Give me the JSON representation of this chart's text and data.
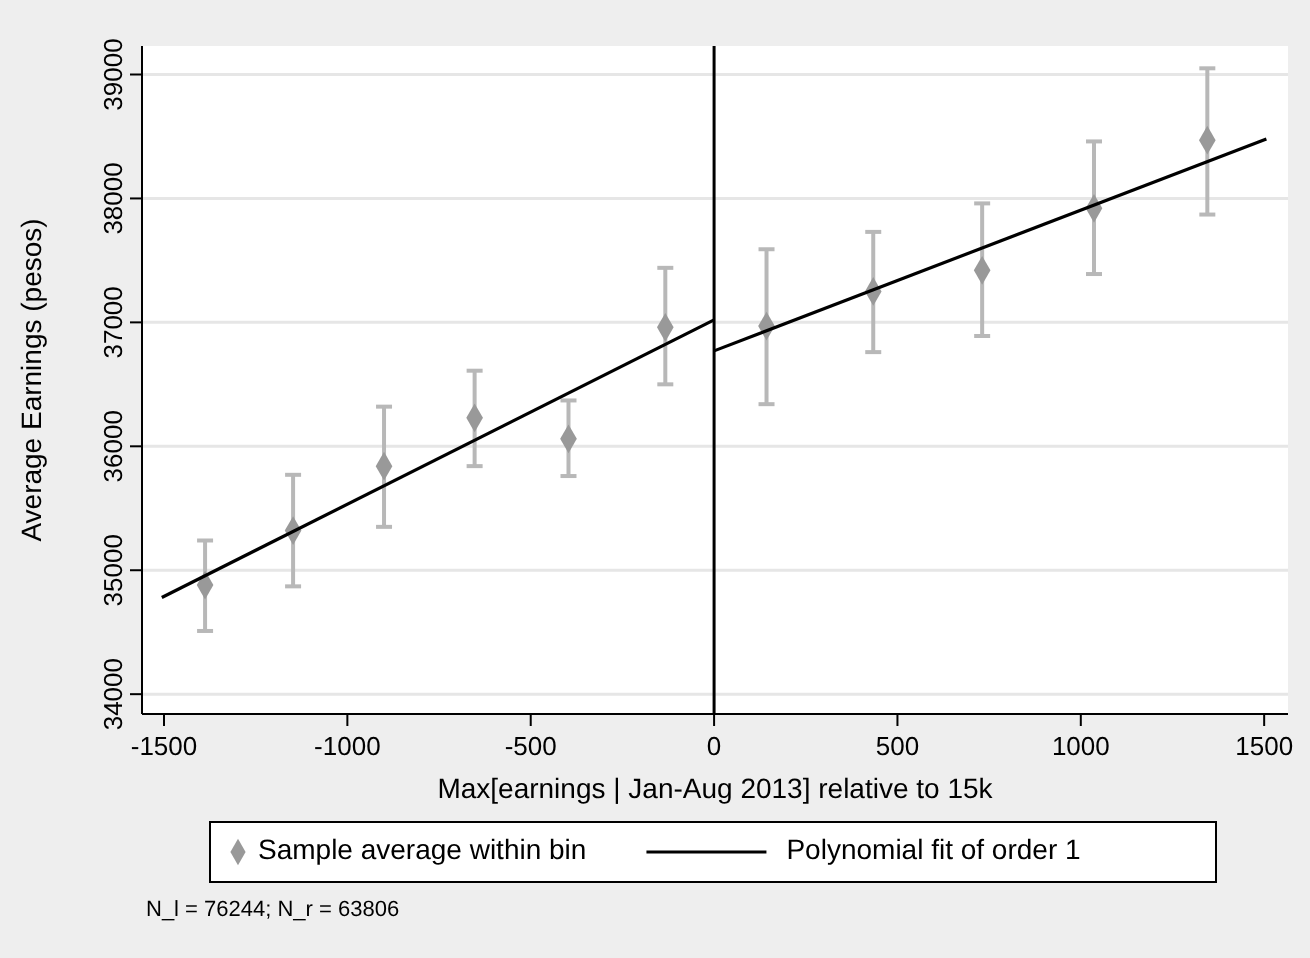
{
  "chart_data": {
    "type": "scatter",
    "xlabel": "Max[earnings | Jan-Aug 2013] relative to 15k",
    "ylabel": "Average Earnings (pesos)",
    "xlim": [
      -1560,
      1565
    ],
    "xticks": [
      -1500,
      -1000,
      -500,
      0,
      500,
      1000,
      1500
    ],
    "ylim": [
      33840,
      39230
    ],
    "yticks": [
      34000,
      35000,
      36000,
      37000,
      38000,
      39000
    ],
    "grid": "y",
    "legend": "bottom",
    "ref_lines": [
      {
        "axis": "x",
        "value": 0,
        "color": "#000000"
      }
    ],
    "annotations": [
      "N_l = 76244; N_r = 63806"
    ],
    "series": [
      {
        "name": "Sample average within bin",
        "color": "#999999",
        "marker": "diamond",
        "x": [
          -1388,
          -1148,
          -900,
          -653,
          -397,
          -133,
          143,
          434,
          731,
          1036,
          1345
        ],
        "values": [
          34880,
          35320,
          35840,
          36230,
          36060,
          36960,
          36970,
          37250,
          37420,
          37920,
          38470
        ],
        "errors": [
          [
            34510,
            35240
          ],
          [
            34870,
            35770
          ],
          [
            35350,
            36320
          ],
          [
            35840,
            36610
          ],
          [
            35760,
            36370
          ],
          [
            36500,
            37440
          ],
          [
            36340,
            37590
          ],
          [
            36760,
            37730
          ],
          [
            36890,
            37960
          ],
          [
            37390,
            38460
          ],
          [
            37870,
            39050
          ]
        ]
      },
      {
        "name": "Polynomial fit of order 1",
        "type": "line",
        "color": "#000000",
        "marker": "none",
        "line_style": "solid",
        "x": [
          -1506,
          0
        ],
        "values": [
          34780,
          37020
        ]
      },
      {
        "type": "line",
        "color": "#000000",
        "marker": "none",
        "line_style": "solid",
        "x": [
          0,
          1506
        ],
        "values": [
          36770,
          38480
        ]
      }
    ]
  }
}
